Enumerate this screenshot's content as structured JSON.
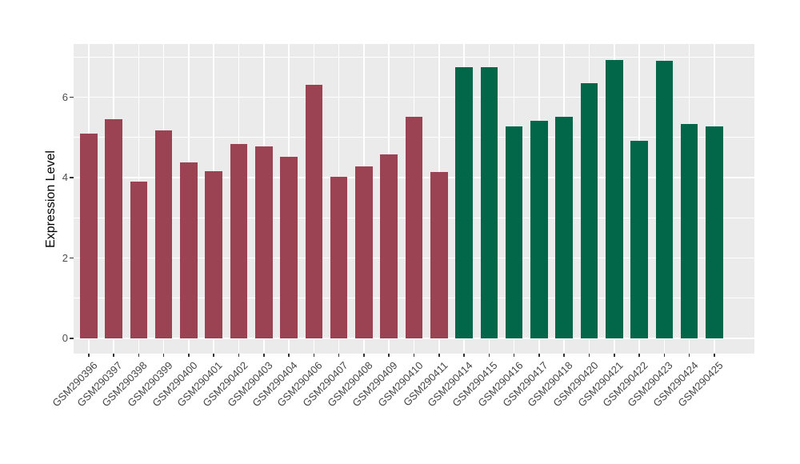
{
  "figure": {
    "background": "#FFFFFF"
  },
  "chart_data": {
    "type": "bar",
    "title": "",
    "xlabel": "",
    "ylabel": "Expression Level",
    "yticks": [
      0,
      2,
      4,
      6
    ],
    "minor_yticks": [
      1,
      3,
      5,
      7
    ],
    "ylim": [
      -0.37,
      7.32
    ],
    "grid": "white major and minor gridlines on grey panel (ggplot style)",
    "legend_position": "none",
    "panel_background": "#EBEBEB",
    "gridline_color": "#FFFFFF",
    "axis_text_color": "#4D4D4D",
    "tick_mark_color": "#333333",
    "series": [
      {
        "name": "group-maroon",
        "color": "#9B4352",
        "categories": [
          "GSM290396",
          "GSM290397",
          "GSM290398",
          "GSM290399",
          "GSM290400",
          "GSM290401",
          "GSM290402",
          "GSM290403",
          "GSM290404",
          "GSM290406",
          "GSM290407",
          "GSM290408",
          "GSM290409",
          "GSM290410",
          "GSM290411"
        ],
        "values": [
          5.1,
          5.46,
          3.91,
          5.18,
          4.37,
          4.16,
          4.83,
          4.77,
          4.52,
          6.3,
          4.02,
          4.28,
          4.58,
          5.52,
          4.13
        ]
      },
      {
        "name": "group-green",
        "color": "#016748",
        "categories": [
          "GSM290414",
          "GSM290415",
          "GSM290416",
          "GSM290417",
          "GSM290418",
          "GSM290420",
          "GSM290421",
          "GSM290422",
          "GSM290423",
          "GSM290424",
          "GSM290425"
        ],
        "values": [
          6.75,
          6.75,
          5.28,
          5.41,
          5.52,
          6.35,
          6.93,
          4.91,
          6.91,
          5.34,
          5.28
        ]
      }
    ]
  }
}
